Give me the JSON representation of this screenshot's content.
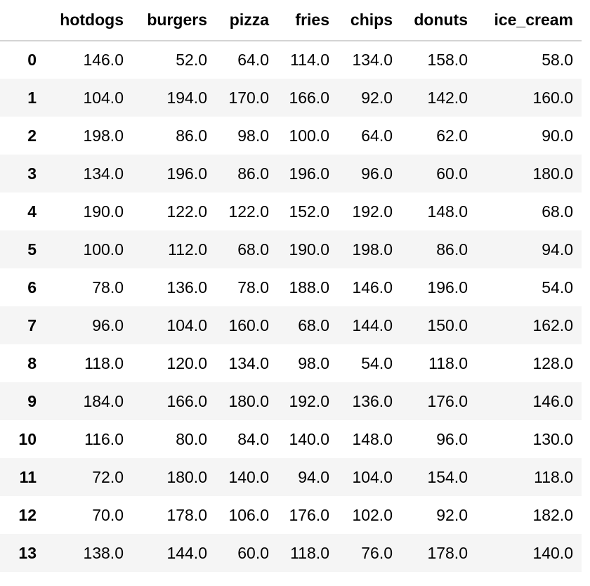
{
  "table": {
    "index_header": "",
    "columns": [
      "hotdogs",
      "burgers",
      "pizza",
      "fries",
      "chips",
      "donuts",
      "ice_cream"
    ],
    "rows": [
      {
        "index": "0",
        "values": [
          "146.0",
          "52.0",
          "64.0",
          "114.0",
          "134.0",
          "158.0",
          "58.0"
        ]
      },
      {
        "index": "1",
        "values": [
          "104.0",
          "194.0",
          "170.0",
          "166.0",
          "92.0",
          "142.0",
          "160.0"
        ]
      },
      {
        "index": "2",
        "values": [
          "198.0",
          "86.0",
          "98.0",
          "100.0",
          "64.0",
          "62.0",
          "90.0"
        ]
      },
      {
        "index": "3",
        "values": [
          "134.0",
          "196.0",
          "86.0",
          "196.0",
          "96.0",
          "60.0",
          "180.0"
        ]
      },
      {
        "index": "4",
        "values": [
          "190.0",
          "122.0",
          "122.0",
          "152.0",
          "192.0",
          "148.0",
          "68.0"
        ]
      },
      {
        "index": "5",
        "values": [
          "100.0",
          "112.0",
          "68.0",
          "190.0",
          "198.0",
          "86.0",
          "94.0"
        ]
      },
      {
        "index": "6",
        "values": [
          "78.0",
          "136.0",
          "78.0",
          "188.0",
          "146.0",
          "196.0",
          "54.0"
        ]
      },
      {
        "index": "7",
        "values": [
          "96.0",
          "104.0",
          "160.0",
          "68.0",
          "144.0",
          "150.0",
          "162.0"
        ]
      },
      {
        "index": "8",
        "values": [
          "118.0",
          "120.0",
          "134.0",
          "98.0",
          "54.0",
          "118.0",
          "128.0"
        ]
      },
      {
        "index": "9",
        "values": [
          "184.0",
          "166.0",
          "180.0",
          "192.0",
          "136.0",
          "176.0",
          "146.0"
        ]
      },
      {
        "index": "10",
        "values": [
          "116.0",
          "80.0",
          "84.0",
          "140.0",
          "148.0",
          "96.0",
          "130.0"
        ]
      },
      {
        "index": "11",
        "values": [
          "72.0",
          "180.0",
          "140.0",
          "94.0",
          "104.0",
          "154.0",
          "118.0"
        ]
      },
      {
        "index": "12",
        "values": [
          "70.0",
          "178.0",
          "106.0",
          "176.0",
          "102.0",
          "92.0",
          "182.0"
        ]
      },
      {
        "index": "13",
        "values": [
          "138.0",
          "144.0",
          "60.0",
          "118.0",
          "76.0",
          "178.0",
          "140.0"
        ]
      }
    ]
  },
  "colors": {
    "stripe": "#f5f5f5",
    "header_rule": "#d4d4d4",
    "text": "#000000"
  }
}
